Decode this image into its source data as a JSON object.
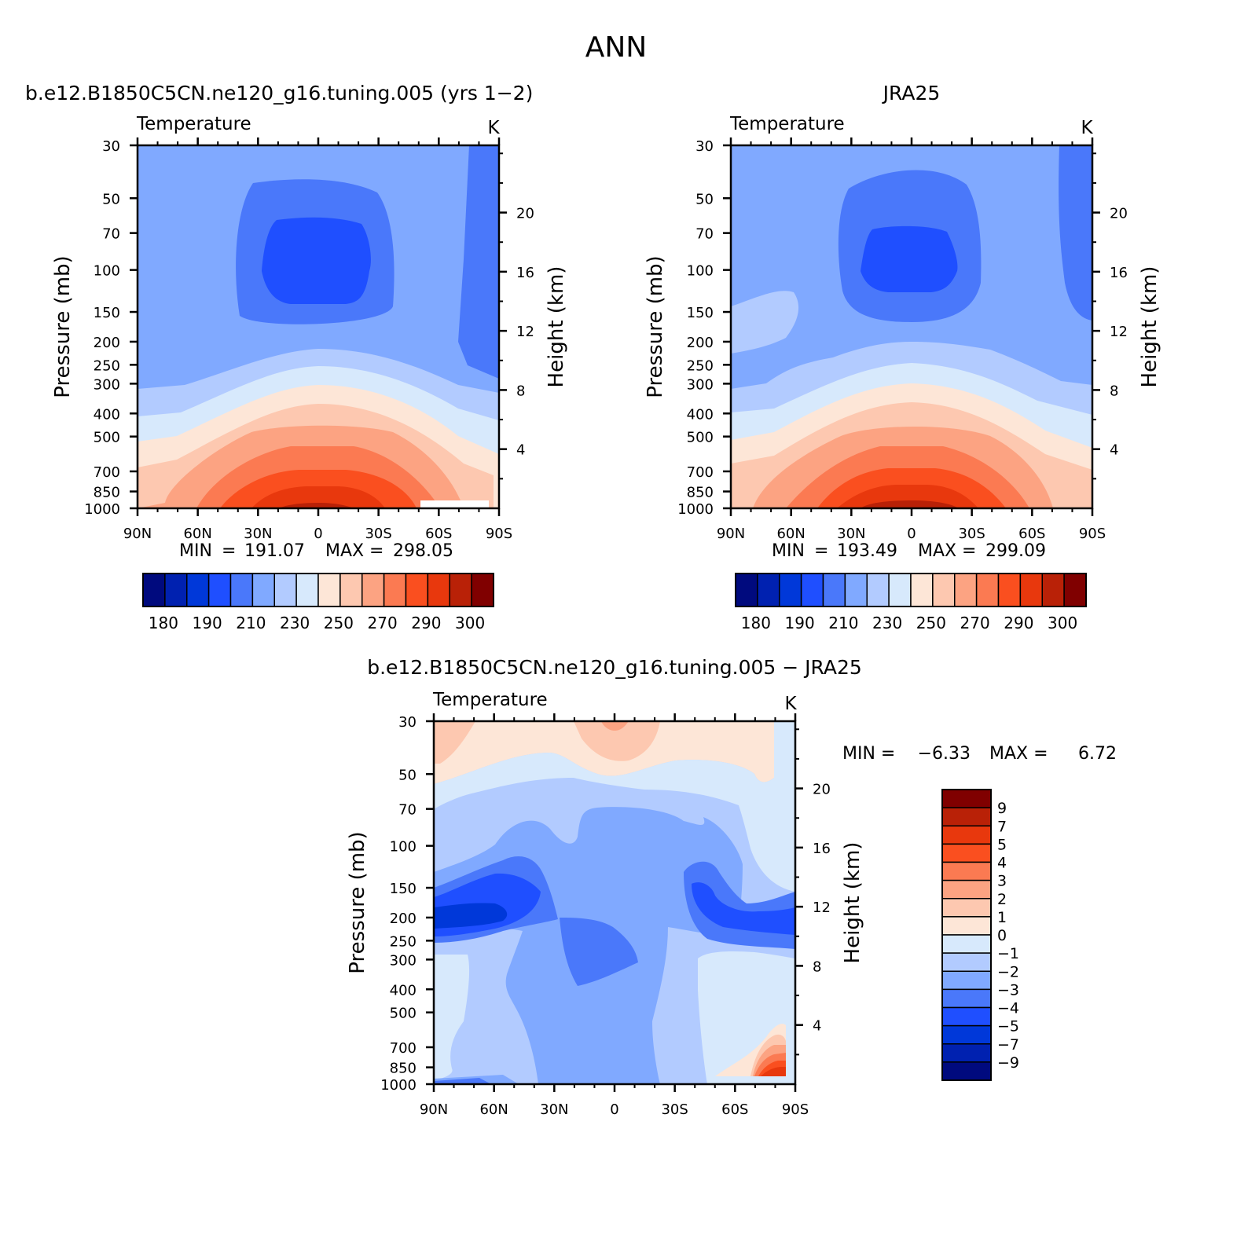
{
  "figure_title": "ANN",
  "chart_data": [
    {
      "type": "heatmap",
      "id": "model",
      "case_label": "b.e12.B1850C5CN.ne120_g16.tuning.005 (yrs 1−2)",
      "title": "Temperature",
      "units": "K",
      "xlabel": "",
      "ylabel": "Pressure (mb)",
      "ylabel_right": "Height (km)",
      "x_ticks": [
        "90N",
        "60N",
        "30N",
        "0",
        "30S",
        "60S",
        "90S"
      ],
      "x_values": [
        90,
        60,
        30,
        0,
        -30,
        -60,
        -90
      ],
      "y_ticks": [
        30,
        50,
        70,
        100,
        150,
        200,
        250,
        300,
        400,
        500,
        700,
        850,
        1000
      ],
      "y_range": [
        30,
        1000
      ],
      "height_ticks": [
        4,
        8,
        12,
        16,
        20
      ],
      "stats": {
        "min_label": "MIN",
        "min": "191.07",
        "max_label": "MAX",
        "max": "298.05"
      },
      "colorbar": {
        "levels": [
          180,
          185,
          190,
          200,
          210,
          220,
          230,
          240,
          250,
          260,
          270,
          280,
          290,
          295,
          300
        ],
        "tick_labels": [
          "180",
          "190",
          "210",
          "230",
          "250",
          "270",
          "290",
          "300"
        ],
        "colors": [
          "#000a7e",
          "#0021b0",
          "#0038d9",
          "#1f4fff",
          "#4a78fa",
          "#80a9ff",
          "#b2cbff",
          "#d7e9fc",
          "#fde6d7",
          "#fdc8b0",
          "#fca382",
          "#fb7a52",
          "#fa4f1f",
          "#e8380d",
          "#b92107",
          "#800000"
        ]
      }
    },
    {
      "type": "heatmap",
      "id": "obs",
      "case_label": "JRA25",
      "title": "Temperature",
      "units": "K",
      "xlabel": "",
      "ylabel": "Pressure (mb)",
      "ylabel_right": "Height (km)",
      "x_ticks": [
        "90N",
        "60N",
        "30N",
        "0",
        "30S",
        "60S",
        "90S"
      ],
      "x_values": [
        90,
        60,
        30,
        0,
        -30,
        -60,
        -90
      ],
      "y_ticks": [
        30,
        50,
        70,
        100,
        150,
        200,
        250,
        300,
        400,
        500,
        700,
        850,
        1000
      ],
      "y_range": [
        30,
        1000
      ],
      "height_ticks": [
        4,
        8,
        12,
        16,
        20
      ],
      "stats": {
        "min_label": "MIN",
        "min": "193.49",
        "max_label": "MAX",
        "max": "299.09"
      },
      "colorbar": {
        "levels": [
          180,
          185,
          190,
          200,
          210,
          220,
          230,
          240,
          250,
          260,
          270,
          280,
          290,
          295,
          300
        ],
        "tick_labels": [
          "180",
          "190",
          "210",
          "230",
          "250",
          "270",
          "290",
          "300"
        ],
        "colors": [
          "#000a7e",
          "#0021b0",
          "#0038d9",
          "#1f4fff",
          "#4a78fa",
          "#80a9ff",
          "#b2cbff",
          "#d7e9fc",
          "#fde6d7",
          "#fdc8b0",
          "#fca382",
          "#fb7a52",
          "#fa4f1f",
          "#e8380d",
          "#b92107",
          "#800000"
        ]
      }
    },
    {
      "type": "heatmap",
      "id": "diff",
      "case_label": "b.e12.B1850C5CN.ne120_g16.tuning.005 − JRA25",
      "title": "Temperature",
      "units": "K",
      "xlabel": "",
      "ylabel": "Pressure (mb)",
      "ylabel_right": "Height (km)",
      "x_ticks": [
        "90N",
        "60N",
        "30N",
        "0",
        "30S",
        "60S",
        "90S"
      ],
      "x_values": [
        90,
        60,
        30,
        0,
        -30,
        -60,
        -90
      ],
      "y_ticks": [
        30,
        50,
        70,
        100,
        150,
        200,
        250,
        300,
        400,
        500,
        700,
        850,
        1000
      ],
      "y_range": [
        30,
        1000
      ],
      "height_ticks": [
        4,
        8,
        12,
        16,
        20
      ],
      "stats": {
        "min_label": "MIN =",
        "min": "−6.33",
        "max_label": "MAX =",
        "max": "6.72"
      },
      "colorbar": {
        "levels": [
          9,
          7,
          5,
          4,
          3,
          2,
          1,
          0,
          -1,
          -2,
          -3,
          -4,
          -5,
          -7,
          -9
        ],
        "tick_labels": [
          "9",
          "7",
          "5",
          "4",
          "3",
          "2",
          "1",
          "0",
          "−1",
          "−2",
          "−3",
          "−4",
          "−5",
          "−7",
          "−9"
        ],
        "colors": [
          "#800000",
          "#b92107",
          "#e8380d",
          "#fa4f1f",
          "#fb7a52",
          "#fca382",
          "#fdc8b0",
          "#fde6d7",
          "#d7e9fc",
          "#b2cbff",
          "#80a9ff",
          "#4a78fa",
          "#1f4fff",
          "#0038d9",
          "#0021b0",
          "#000a7e"
        ]
      }
    }
  ]
}
